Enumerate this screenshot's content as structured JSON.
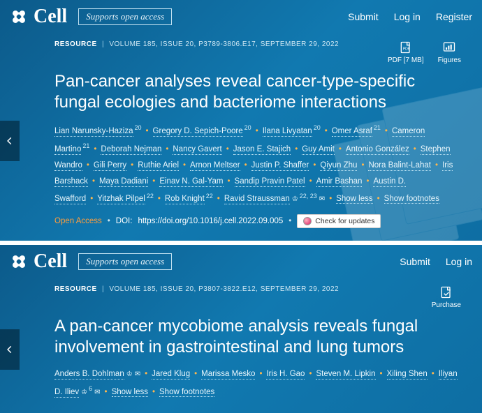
{
  "panels": [
    {
      "brand": "Cell",
      "openaccess_badge": "Supports open access",
      "nav": {
        "submit": "Submit",
        "login": "Log in",
        "register": "Register"
      },
      "article_type": "RESOURCE",
      "volume_info": "VOLUME 185, ISSUE 20, P3789-3806.E17, SEPTEMBER 29, 2022",
      "actions": {
        "pdf": {
          "label": "PDF [7 MB]"
        },
        "figures": {
          "label": "Figures"
        }
      },
      "title": "Pan-cancer analyses reveal cancer-type-specific fungal ecologies and bacteriome interactions",
      "authors_html": "<span class='author'>Lian Narunsky-Haziza</span><span class='aff'>20</span><span class='dot'>•</span><span class='author'>Gregory D. Sepich-Poore</span><span class='aff'>20</span><span class='dot'>•</span><span class='author'>Ilana Livyatan</span><span class='aff'>20</span><span class='dot'>•</span><span class='author'>Omer Asraf</span><span class='aff'>21</span><span class='dot'>•</span><span class='author'>Cameron Martino</span><span class='aff'>21</span><span class='dot'>•</span><span class='author'>Deborah Nejman</span><span class='dot'>•</span><span class='author'>Nancy Gavert</span><span class='dot'>•</span><span class='author'>Jason E. Stajich</span><span class='dot'>•</span><span class='author'>Guy Amit</span><span class='dot'>•</span><span class='author'>Antonio González</span><span class='dot'>•</span><span class='author'>Stephen Wandro</span><span class='dot'>•</span><span class='author'>Gili Perry</span><span class='dot'>•</span><span class='author'>Ruthie Ariel</span><span class='dot'>•</span><span class='author'>Arnon Meltser</span><span class='dot'>•</span><span class='author'>Justin P. Shaffer</span><span class='dot'>•</span><span class='author'>Qiyun Zhu</span><span class='dot'>•</span><span class='author'>Nora Balint-Lahat</span><span class='dot'>•</span><span class='author'>Iris Barshack</span><span class='dot'>•</span><span class='author'>Maya Dadiani</span><span class='dot'>•</span><span class='author'>Einav N. Gal-Yam</span><span class='dot'>•</span><span class='author'>Sandip Pravin Patel</span><span class='dot'>•</span><span class='author'>Amir Bashan</span><span class='dot'>•</span><span class='author'>Austin D. Swafford</span><span class='dot'>•</span><span class='author'>Yitzhak Pilpel</span><span class='aff'>22</span><span class='dot'>•</span><span class='author'>Rob Knight</span><span class='aff'>22</span><span class='dot'>•</span><span class='author'>Ravid Straussman</span><span class='usr'>♔</span><span class='aff'>22, 23</span><span class='env'>✉</span><span class='dot'>•</span><span class='link-less'>Show less</span><span class='dot'>•</span><span class='link-less'>Show footnotes</span>",
      "open_access_label": "Open Access",
      "doi_label": "DOI:",
      "doi": "https://doi.org/10.1016/j.cell.2022.09.005",
      "check_updates": "Check for updates",
      "show_bgdeco": true
    },
    {
      "brand": "Cell",
      "openaccess_badge": "Supports open access",
      "nav": {
        "submit": "Submit",
        "login": "Log in"
      },
      "article_type": "RESOURCE",
      "volume_info": "VOLUME 185, ISSUE 20, P3807-3822.E12, SEPTEMBER 29, 2022",
      "actions": {
        "purchase": {
          "label": "Purchase"
        }
      },
      "title": "A pan-cancer mycobiome analysis reveals fungal involvement in gastrointestinal and lung tumors",
      "authors_html": "<span class='author'>Anders B. Dohlman</span><span class='usr'>♔</span><span class='env'>✉</span><span class='dot'>•</span><span class='author'>Jared Klug</span><span class='dot'>•</span><span class='author'>Marissa Mesko</span><span class='dot'>•</span><span class='author'>Iris H. Gao</span><span class='dot'>•</span><span class='author'>Steven M. Lipkin</span><span class='dot'>•</span><span class='author'>Xiling Shen</span><span class='dot'>•</span><span class='author'>Iliyan D. Iliev</span><span class='usr'>♔</span><span class='aff'>6</span><span class='env'>✉</span><span class='dot'>•</span><span class='link-less'>Show less</span><span class='dot'>•</span><span class='link-less'>Show footnotes</span>",
      "show_bgdeco": false
    }
  ]
}
